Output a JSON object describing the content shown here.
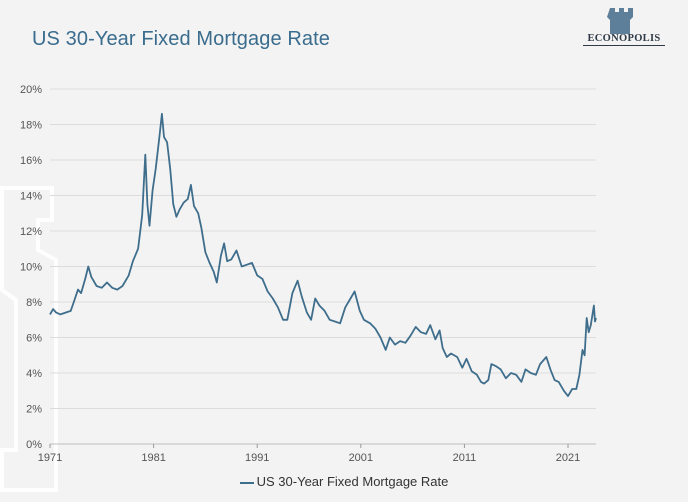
{
  "header": {
    "title": "US 30-Year Fixed Mortgage Rate"
  },
  "brand": {
    "name": "ECONOPOLIS"
  },
  "chart_data": {
    "type": "line",
    "title": "US 30-Year Fixed Mortgage Rate",
    "xlabel": "",
    "ylabel": "",
    "xlim": [
      1971,
      2023.7
    ],
    "ylim": [
      0,
      20
    ],
    "x_ticks": [
      "1971",
      "1981",
      "1991",
      "2001",
      "2011",
      "2021"
    ],
    "y_ticks": [
      "0%",
      "2%",
      "4%",
      "6%",
      "8%",
      "10%",
      "12%",
      "14%",
      "16%",
      "18%",
      "20%"
    ],
    "grid": true,
    "legend_position": "bottom",
    "colors": {
      "line": "#3f6e8c",
      "title": "#3a6c8e"
    },
    "series": [
      {
        "name": "US 30-Year Fixed Mortgage Rate",
        "points": [
          [
            1971.0,
            7.3
          ],
          [
            1971.3,
            7.6
          ],
          [
            1971.6,
            7.4
          ],
          [
            1972.0,
            7.3
          ],
          [
            1972.5,
            7.4
          ],
          [
            1973.0,
            7.5
          ],
          [
            1973.3,
            8.0
          ],
          [
            1973.7,
            8.7
          ],
          [
            1974.0,
            8.5
          ],
          [
            1974.4,
            9.3
          ],
          [
            1974.7,
            10.0
          ],
          [
            1975.0,
            9.4
          ],
          [
            1975.5,
            8.9
          ],
          [
            1976.0,
            8.8
          ],
          [
            1976.5,
            9.1
          ],
          [
            1977.0,
            8.8
          ],
          [
            1977.5,
            8.7
          ],
          [
            1978.0,
            8.9
          ],
          [
            1978.6,
            9.5
          ],
          [
            1979.0,
            10.3
          ],
          [
            1979.5,
            11.0
          ],
          [
            1979.9,
            12.9
          ],
          [
            1980.2,
            16.3
          ],
          [
            1980.4,
            13.5
          ],
          [
            1980.6,
            12.3
          ],
          [
            1980.9,
            14.3
          ],
          [
            1981.2,
            15.5
          ],
          [
            1981.6,
            17.5
          ],
          [
            1981.8,
            18.6
          ],
          [
            1982.0,
            17.3
          ],
          [
            1982.3,
            17.0
          ],
          [
            1982.6,
            15.5
          ],
          [
            1982.9,
            13.5
          ],
          [
            1983.2,
            12.8
          ],
          [
            1983.5,
            13.2
          ],
          [
            1983.9,
            13.6
          ],
          [
            1984.3,
            13.8
          ],
          [
            1984.6,
            14.6
          ],
          [
            1984.9,
            13.4
          ],
          [
            1985.3,
            13.0
          ],
          [
            1985.6,
            12.2
          ],
          [
            1986.0,
            10.8
          ],
          [
            1986.4,
            10.2
          ],
          [
            1986.8,
            9.7
          ],
          [
            1987.1,
            9.1
          ],
          [
            1987.5,
            10.6
          ],
          [
            1987.8,
            11.3
          ],
          [
            1988.1,
            10.3
          ],
          [
            1988.5,
            10.4
          ],
          [
            1989.0,
            10.9
          ],
          [
            1989.5,
            10.0
          ],
          [
            1990.0,
            10.1
          ],
          [
            1990.5,
            10.2
          ],
          [
            1991.0,
            9.5
          ],
          [
            1991.5,
            9.3
          ],
          [
            1992.0,
            8.6
          ],
          [
            1992.5,
            8.2
          ],
          [
            1993.0,
            7.7
          ],
          [
            1993.5,
            7.0
          ],
          [
            1993.9,
            7.0
          ],
          [
            1994.4,
            8.5
          ],
          [
            1994.9,
            9.2
          ],
          [
            1995.3,
            8.3
          ],
          [
            1995.8,
            7.4
          ],
          [
            1996.2,
            7.0
          ],
          [
            1996.6,
            8.2
          ],
          [
            1997.0,
            7.8
          ],
          [
            1997.5,
            7.5
          ],
          [
            1998.0,
            7.0
          ],
          [
            1998.5,
            6.9
          ],
          [
            1999.0,
            6.8
          ],
          [
            1999.5,
            7.7
          ],
          [
            2000.0,
            8.2
          ],
          [
            2000.4,
            8.6
          ],
          [
            2000.9,
            7.5
          ],
          [
            2001.3,
            7.0
          ],
          [
            2001.9,
            6.8
          ],
          [
            2002.4,
            6.5
          ],
          [
            2002.9,
            6.0
          ],
          [
            2003.4,
            5.3
          ],
          [
            2003.8,
            6.0
          ],
          [
            2004.3,
            5.6
          ],
          [
            2004.8,
            5.8
          ],
          [
            2005.3,
            5.7
          ],
          [
            2005.8,
            6.1
          ],
          [
            2006.3,
            6.6
          ],
          [
            2006.8,
            6.3
          ],
          [
            2007.3,
            6.2
          ],
          [
            2007.7,
            6.7
          ],
          [
            2008.2,
            5.9
          ],
          [
            2008.6,
            6.4
          ],
          [
            2008.9,
            5.4
          ],
          [
            2009.3,
            4.9
          ],
          [
            2009.7,
            5.1
          ],
          [
            2010.3,
            4.9
          ],
          [
            2010.8,
            4.3
          ],
          [
            2011.2,
            4.8
          ],
          [
            2011.7,
            4.1
          ],
          [
            2012.2,
            3.9
          ],
          [
            2012.6,
            3.5
          ],
          [
            2012.9,
            3.4
          ],
          [
            2013.3,
            3.6
          ],
          [
            2013.6,
            4.5
          ],
          [
            2014.0,
            4.4
          ],
          [
            2014.5,
            4.2
          ],
          [
            2015.0,
            3.7
          ],
          [
            2015.5,
            4.0
          ],
          [
            2016.0,
            3.9
          ],
          [
            2016.5,
            3.5
          ],
          [
            2016.9,
            4.2
          ],
          [
            2017.4,
            4.0
          ],
          [
            2017.9,
            3.9
          ],
          [
            2018.3,
            4.5
          ],
          [
            2018.9,
            4.9
          ],
          [
            2019.3,
            4.2
          ],
          [
            2019.7,
            3.6
          ],
          [
            2020.1,
            3.5
          ],
          [
            2020.6,
            3.0
          ],
          [
            2021.0,
            2.7
          ],
          [
            2021.4,
            3.1
          ],
          [
            2021.8,
            3.1
          ],
          [
            2022.1,
            3.9
          ],
          [
            2022.4,
            5.3
          ],
          [
            2022.6,
            5.0
          ],
          [
            2022.8,
            7.1
          ],
          [
            2023.0,
            6.3
          ],
          [
            2023.2,
            6.7
          ],
          [
            2023.5,
            7.8
          ],
          [
            2023.6,
            6.9
          ],
          [
            2023.7,
            7.1
          ]
        ]
      }
    ]
  }
}
